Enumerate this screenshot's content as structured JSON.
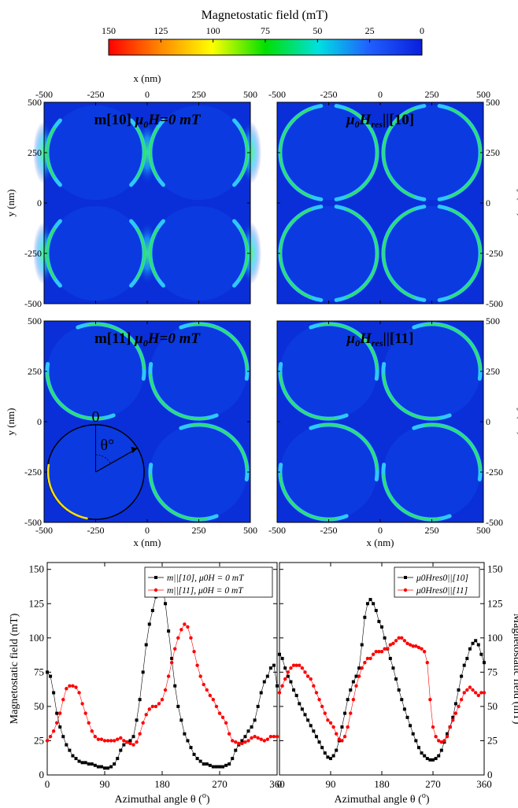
{
  "colorbar": {
    "title": "Magnetostatic field (mT)",
    "ticks": [
      "150",
      "125",
      "100",
      "75",
      "50",
      "25",
      "0"
    ],
    "colors": [
      "#ff0000",
      "#ff8c00",
      "#ffff00",
      "#00e000",
      "#00e0e0",
      "#2060ff",
      "#0a1fdc"
    ]
  },
  "maps": {
    "x_ticks": [
      "-500",
      "-250",
      "0",
      "250",
      "500"
    ],
    "y_ticks": [
      "500",
      "250",
      "0",
      "-250",
      "-500"
    ],
    "x_label": "x (nm)",
    "y_label": "y (nm)",
    "y_label_right": "y (nm)",
    "panels": [
      {
        "title": "m[10] μ0H=0 mT",
        "title_plain": "m[10] ",
        "title_mu": "μ",
        "title_sub": "0",
        "title_rest": "H=0 mT"
      },
      {
        "title": "μ0Hres||[10]",
        "title_mu": "μ",
        "title_sub0": "0",
        "title_H": "H",
        "title_sub": "res",
        "title_rest": "||[10]"
      },
      {
        "title": "m[11] μ0H=0 mT",
        "title_plain": "m[11] ",
        "title_mu": "μ",
        "title_sub": "0",
        "title_rest": "H=0 mT"
      },
      {
        "title": "μ0Hres||[11]",
        "title_mu": "μ",
        "title_sub0": "0",
        "title_H": "H",
        "title_sub": "res",
        "title_rest": "||[11]"
      }
    ],
    "angle_zero": "0",
    "angle_label": "θ°",
    "colors": {
      "background": "#0a2fd8",
      "disk": "#0b3ae0",
      "rim_hot": "#ffe000",
      "rim_mid": "#30e060",
      "rim_cold": "#30d0ff"
    }
  },
  "chart_data": [
    {
      "type": "scatter",
      "xlabel": "Azimuthal angle θ (o)",
      "ylabel": "Magnetostatic field (mT)",
      "xlim": [
        0,
        360
      ],
      "ylim": [
        0,
        155
      ],
      "x_ticks": [
        0,
        90,
        180,
        270,
        360
      ],
      "y_ticks": [
        0,
        25,
        50,
        75,
        100,
        125,
        150
      ],
      "legend_position": "top-right",
      "series": [
        {
          "name": "m||[10], μ0H = 0 mT",
          "color": "#000000",
          "marker": "square",
          "x": [
            0,
            5,
            10,
            15,
            20,
            25,
            30,
            35,
            40,
            45,
            50,
            55,
            60,
            65,
            70,
            75,
            80,
            85,
            90,
            95,
            100,
            105,
            110,
            115,
            120,
            125,
            130,
            135,
            140,
            145,
            150,
            155,
            160,
            165,
            170,
            175,
            180,
            185,
            190,
            195,
            200,
            205,
            210,
            215,
            220,
            225,
            230,
            235,
            240,
            245,
            250,
            255,
            260,
            265,
            270,
            275,
            280,
            285,
            290,
            295,
            300,
            305,
            310,
            315,
            320,
            325,
            330,
            335,
            340,
            345,
            350,
            355,
            360
          ],
          "y": [
            75,
            72,
            60,
            45,
            35,
            28,
            22,
            18,
            14,
            12,
            10,
            9,
            9,
            8,
            8,
            7,
            6,
            6,
            5,
            5,
            6,
            8,
            12,
            18,
            22,
            24,
            25,
            28,
            40,
            55,
            75,
            95,
            110,
            120,
            130,
            138,
            140,
            125,
            105,
            85,
            65,
            50,
            40,
            30,
            25,
            20,
            15,
            12,
            10,
            8,
            8,
            7,
            6,
            6,
            6,
            6,
            7,
            8,
            12,
            18,
            22,
            25,
            28,
            32,
            35,
            40,
            50,
            60,
            68,
            72,
            78,
            80,
            65
          ]
        },
        {
          "name": "m||[11], μ0H = 0 mT",
          "color": "#ff0000",
          "marker": "circle",
          "x": [
            0,
            5,
            10,
            15,
            20,
            25,
            30,
            35,
            40,
            45,
            50,
            55,
            60,
            65,
            70,
            75,
            80,
            85,
            90,
            95,
            100,
            105,
            110,
            115,
            120,
            125,
            130,
            135,
            140,
            145,
            150,
            155,
            160,
            165,
            170,
            175,
            180,
            185,
            190,
            195,
            200,
            205,
            210,
            215,
            220,
            225,
            230,
            235,
            240,
            245,
            250,
            255,
            260,
            265,
            270,
            275,
            280,
            285,
            290,
            295,
            300,
            305,
            310,
            315,
            320,
            325,
            330,
            335,
            340,
            345,
            350,
            355,
            360
          ],
          "y": [
            25,
            28,
            32,
            38,
            45,
            55,
            63,
            65,
            65,
            64,
            60,
            52,
            45,
            38,
            32,
            28,
            26,
            26,
            25,
            25,
            25,
            25,
            26,
            27,
            25,
            24,
            23,
            22,
            24,
            30,
            38,
            44,
            48,
            50,
            50,
            52,
            55,
            62,
            72,
            82,
            92,
            100,
            106,
            110,
            108,
            100,
            90,
            80,
            72,
            66,
            62,
            58,
            55,
            50,
            45,
            42,
            38,
            30,
            25,
            24,
            23,
            23,
            24,
            25,
            27,
            28,
            27,
            26,
            25,
            26,
            28,
            28,
            28
          ]
        }
      ]
    },
    {
      "type": "scatter",
      "xlabel": "Azimuthal angle θ (o)",
      "ylabel": "Magnetostatic field (mT)",
      "xlim": [
        0,
        360
      ],
      "ylim": [
        0,
        155
      ],
      "x_ticks": [
        0,
        90,
        180,
        270,
        360
      ],
      "y_ticks": [
        0,
        25,
        50,
        75,
        100,
        125,
        150
      ],
      "legend_position": "top-right",
      "series": [
        {
          "name": "μ0Hres0||[10]",
          "color": "#000000",
          "marker": "square",
          "x": [
            0,
            5,
            10,
            15,
            20,
            25,
            30,
            35,
            40,
            45,
            50,
            55,
            60,
            65,
            70,
            75,
            80,
            85,
            90,
            95,
            100,
            105,
            110,
            115,
            120,
            125,
            130,
            135,
            140,
            145,
            150,
            155,
            160,
            165,
            170,
            175,
            180,
            185,
            190,
            195,
            200,
            205,
            210,
            215,
            220,
            225,
            230,
            235,
            240,
            245,
            250,
            255,
            260,
            265,
            270,
            275,
            280,
            285,
            290,
            295,
            300,
            305,
            310,
            315,
            320,
            325,
            330,
            335,
            340,
            345,
            350,
            355,
            360
          ],
          "y": [
            88,
            85,
            78,
            72,
            68,
            62,
            58,
            52,
            48,
            44,
            40,
            36,
            32,
            28,
            24,
            20,
            16,
            13,
            12,
            14,
            18,
            25,
            35,
            45,
            55,
            62,
            68,
            72,
            78,
            95,
            115,
            125,
            128,
            125,
            120,
            112,
            108,
            100,
            92,
            85,
            78,
            70,
            62,
            55,
            48,
            42,
            36,
            30,
            25,
            20,
            16,
            14,
            12,
            11,
            11,
            12,
            14,
            18,
            24,
            30,
            35,
            42,
            52,
            62,
            72,
            80,
            85,
            92,
            96,
            98,
            95,
            88,
            82
          ]
        },
        {
          "name": "μ0Hres0||[11]",
          "color": "#ff0000",
          "marker": "circle",
          "x": [
            0,
            5,
            10,
            15,
            20,
            25,
            30,
            35,
            40,
            45,
            50,
            55,
            60,
            65,
            70,
            75,
            80,
            85,
            90,
            95,
            100,
            105,
            110,
            115,
            120,
            125,
            130,
            135,
            140,
            145,
            150,
            155,
            160,
            165,
            170,
            175,
            180,
            185,
            190,
            195,
            200,
            205,
            210,
            215,
            220,
            225,
            230,
            235,
            240,
            245,
            250,
            255,
            260,
            265,
            270,
            275,
            280,
            285,
            290,
            295,
            300,
            305,
            310,
            315,
            320,
            325,
            330,
            335,
            340,
            345,
            350,
            355,
            360
          ],
          "y": [
            60,
            65,
            70,
            75,
            78,
            80,
            80,
            80,
            78,
            75,
            72,
            70,
            65,
            60,
            55,
            50,
            45,
            40,
            38,
            35,
            30,
            26,
            25,
            28,
            35,
            45,
            55,
            65,
            72,
            78,
            82,
            85,
            85,
            88,
            90,
            90,
            90,
            92,
            92,
            95,
            96,
            98,
            100,
            100,
            98,
            96,
            95,
            94,
            94,
            93,
            92,
            90,
            82,
            55,
            35,
            28,
            25,
            24,
            25,
            28,
            35,
            40,
            45,
            50,
            55,
            60,
            62,
            64,
            62,
            60,
            58,
            60,
            60
          ]
        }
      ]
    }
  ]
}
